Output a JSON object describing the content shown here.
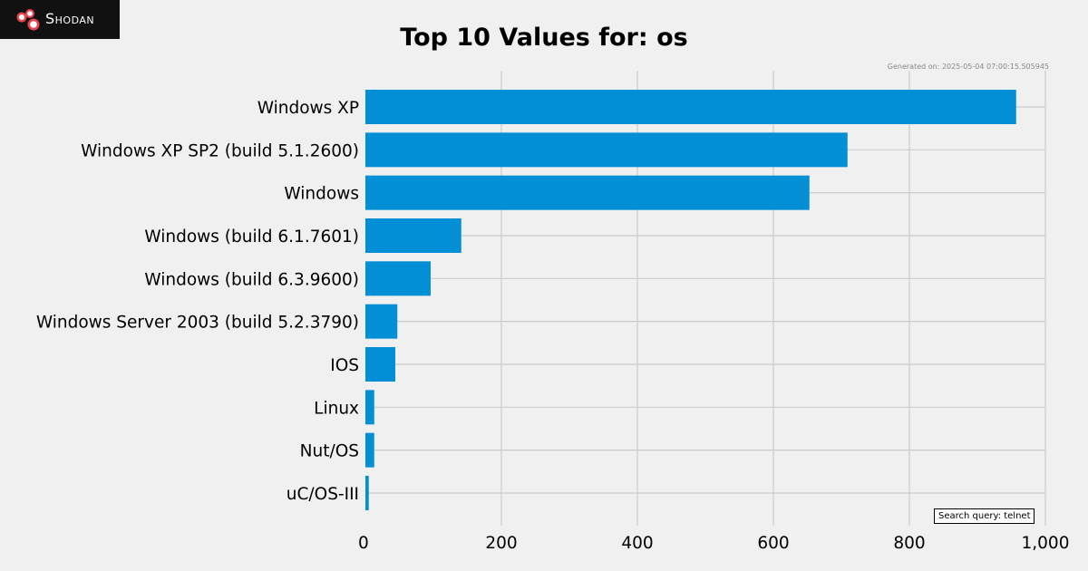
{
  "header": {
    "logo_text": "Shodan",
    "title": "Top 10 Values for: os",
    "generated": "Generated on: 2025-05-04 07:00:15.505945"
  },
  "footer": {
    "query": "Search query: telnet"
  },
  "colors": {
    "bar": "#038fd6",
    "grid": "#cbcbcb",
    "background": "#f0f0f0"
  },
  "chart_data": {
    "type": "bar",
    "orientation": "horizontal",
    "title": "Top 10 Values for: os",
    "categories": [
      "Windows XP",
      "Windows XP SP2 (build 5.1.2600)",
      "Windows",
      "Windows (build 6.1.7601)",
      "Windows (build 6.3.9600)",
      "Windows Server 2003 (build 5.2.3790)",
      "IOS",
      "Linux",
      "Nut/OS",
      "uC/OS-III"
    ],
    "values": [
      957,
      709,
      653,
      141,
      96,
      47,
      44,
      13,
      13,
      5
    ],
    "xlim": [
      0,
      1000
    ],
    "xticks": [
      0,
      200,
      400,
      600,
      800,
      1000
    ],
    "xtick_labels": [
      "0",
      "200",
      "400",
      "600",
      "800",
      "1,000"
    ],
    "grid": true
  }
}
